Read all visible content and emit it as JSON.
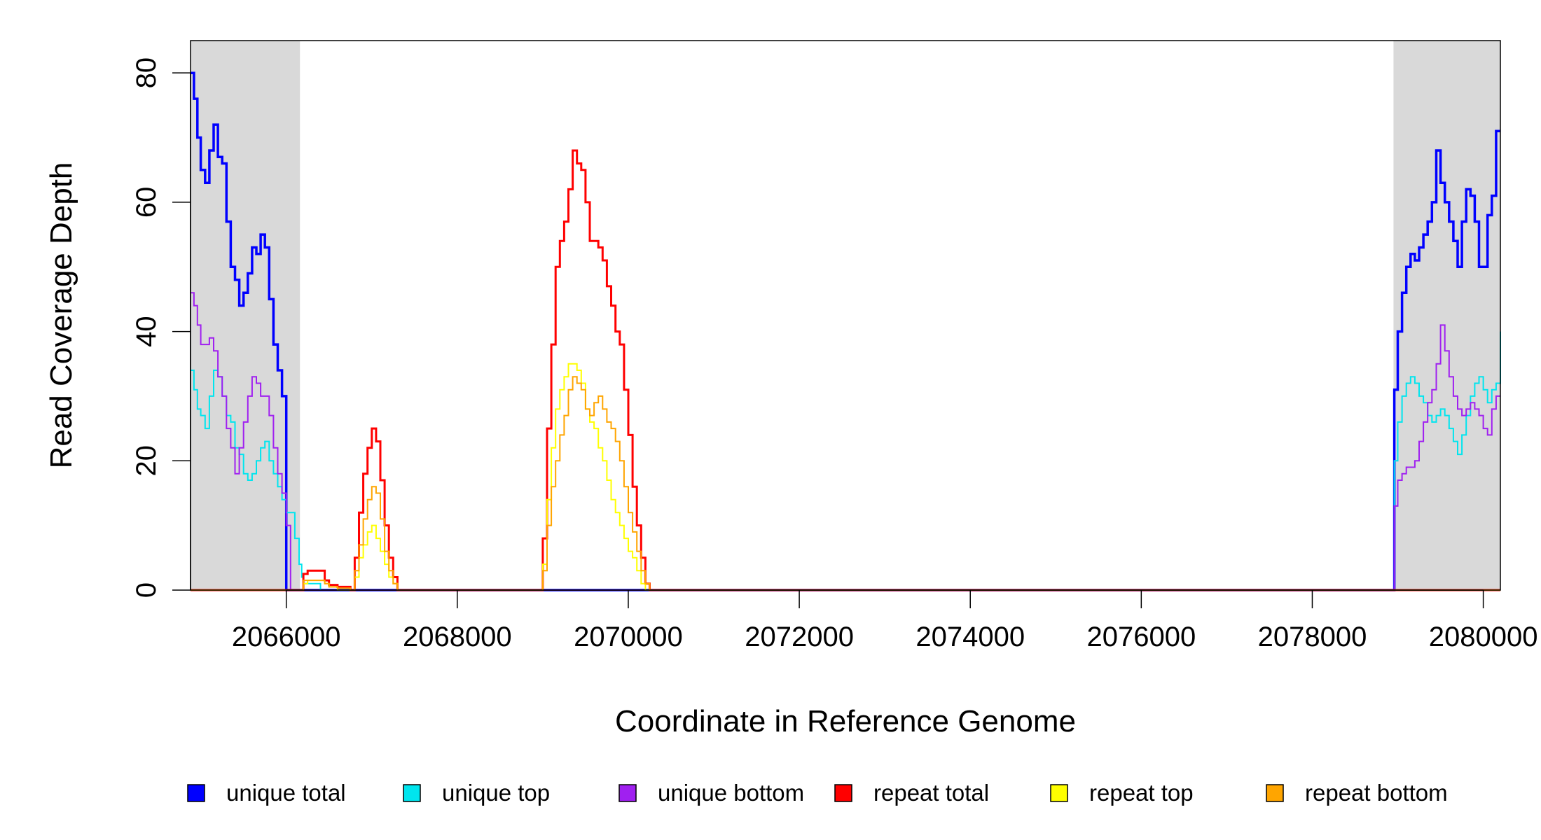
{
  "chart_data": {
    "type": "line",
    "title": "",
    "xlabel": "Coordinate in Reference Genome",
    "ylabel": "Read Coverage Depth",
    "xlim": [
      2064880,
      2080200
    ],
    "ylim": [
      0,
      85
    ],
    "x_ticks": [
      2066000,
      2068000,
      2070000,
      2072000,
      2074000,
      2076000,
      2078000,
      2080000
    ],
    "x_tick_labels": [
      "2066000",
      "2068000",
      "2070000",
      "2072000",
      "2074000",
      "2076000",
      "2078000",
      "2080000"
    ],
    "y_ticks": [
      0,
      20,
      40,
      60,
      80
    ],
    "y_tick_labels": [
      "0",
      "20",
      "40",
      "60",
      "80"
    ],
    "grid": false,
    "legend_position": "bottom",
    "shaded_regions": [
      {
        "x_start": 2064880,
        "x_end": 2066160,
        "color": "#d9d9d9"
      },
      {
        "x_start": 2078950,
        "x_end": 2080200,
        "color": "#d9d9d9"
      }
    ],
    "series": [
      {
        "name": "unique total",
        "color": "#0000ff",
        "x": [
          2064880,
          2064920,
          2064960,
          2065000,
          2065050,
          2065100,
          2065150,
          2065200,
          2065250,
          2065300,
          2065350,
          2065400,
          2065450,
          2065500,
          2065550,
          2065600,
          2065650,
          2065700,
          2065750,
          2065800,
          2065850,
          2065900,
          2065950,
          2066000,
          2066050,
          2066100,
          2066150,
          2066180,
          2066200,
          2066600,
          2078900,
          2078960,
          2079000,
          2079050,
          2079100,
          2079150,
          2079200,
          2079250,
          2079300,
          2079350,
          2079400,
          2079450,
          2079500,
          2079550,
          2079600,
          2079650,
          2079700,
          2079750,
          2079800,
          2079850,
          2079900,
          2079950,
          2080000,
          2080050,
          2080100,
          2080150,
          2080200
        ],
        "y": [
          80,
          76,
          70,
          65,
          63,
          68,
          72,
          67,
          66,
          57,
          50,
          48,
          44,
          46,
          49,
          53,
          52,
          55,
          53,
          45,
          38,
          34,
          30,
          0,
          0,
          0,
          0,
          0,
          0,
          0,
          0,
          31,
          40,
          46,
          50,
          52,
          51,
          53,
          55,
          57,
          60,
          68,
          63,
          60,
          57,
          54,
          50,
          57,
          62,
          61,
          57,
          50,
          50,
          58,
          61,
          71,
          71
        ]
      },
      {
        "name": "unique top",
        "color": "#00e5ee",
        "x": [
          2064880,
          2064920,
          2064960,
          2065000,
          2065050,
          2065100,
          2065150,
          2065200,
          2065250,
          2065300,
          2065350,
          2065400,
          2065450,
          2065500,
          2065550,
          2065600,
          2065650,
          2065700,
          2065750,
          2065800,
          2065850,
          2065900,
          2065950,
          2066000,
          2066100,
          2066150,
          2066180,
          2066200,
          2066400,
          2078900,
          2078960,
          2079000,
          2079050,
          2079100,
          2079150,
          2079200,
          2079250,
          2079300,
          2079350,
          2079400,
          2079450,
          2079500,
          2079550,
          2079600,
          2079650,
          2079700,
          2079750,
          2079800,
          2079850,
          2079900,
          2079950,
          2080000,
          2080050,
          2080100,
          2080150,
          2080200
        ],
        "y": [
          34,
          31,
          28,
          27,
          25,
          30,
          34,
          33,
          30,
          27,
          26,
          22,
          21,
          18,
          17,
          18,
          20,
          22,
          23,
          20,
          18,
          16,
          14,
          12,
          8,
          4,
          2,
          1,
          0,
          0,
          20,
          26,
          30,
          32,
          33,
          32,
          30,
          29,
          27,
          26,
          27,
          28,
          27,
          25,
          23,
          21,
          24,
          27,
          30,
          32,
          33,
          31,
          29,
          31,
          32,
          40
        ]
      },
      {
        "name": "unique bottom",
        "color": "#a020f0",
        "x": [
          2064880,
          2064920,
          2064960,
          2065000,
          2065050,
          2065100,
          2065150,
          2065200,
          2065250,
          2065300,
          2065350,
          2065400,
          2065450,
          2065500,
          2065550,
          2065600,
          2065650,
          2065700,
          2065750,
          2065800,
          2065850,
          2065900,
          2065950,
          2066000,
          2066050,
          2066100,
          2066150,
          2066200,
          2066600,
          2078900,
          2078960,
          2079000,
          2079050,
          2079100,
          2079150,
          2079200,
          2079250,
          2079300,
          2079350,
          2079400,
          2079450,
          2079500,
          2079550,
          2079600,
          2079650,
          2079700,
          2079750,
          2079800,
          2079850,
          2079900,
          2079950,
          2080000,
          2080050,
          2080100,
          2080150,
          2080200
        ],
        "y": [
          46,
          44,
          41,
          38,
          38,
          39,
          37,
          33,
          30,
          25,
          22,
          18,
          22,
          26,
          30,
          33,
          32,
          30,
          30,
          27,
          22,
          18,
          15,
          10,
          0,
          0,
          0,
          0,
          0,
          0,
          13,
          17,
          18,
          19,
          19,
          20,
          23,
          26,
          29,
          31,
          35,
          41,
          37,
          33,
          30,
          28,
          27,
          28,
          29,
          28,
          27,
          25,
          24,
          28,
          30,
          30
        ]
      },
      {
        "name": "repeat total",
        "color": "#ff0000",
        "x": [
          2064880,
          2066150,
          2066200,
          2066250,
          2066400,
          2066450,
          2066500,
          2066600,
          2066750,
          2066800,
          2066850,
          2066900,
          2066950,
          2067000,
          2067050,
          2067100,
          2067150,
          2067200,
          2067250,
          2067300,
          2067350,
          2068950,
          2069000,
          2069050,
          2069100,
          2069150,
          2069200,
          2069250,
          2069300,
          2069350,
          2069400,
          2069450,
          2069500,
          2069550,
          2069600,
          2069650,
          2069700,
          2069750,
          2069800,
          2069850,
          2069900,
          2069950,
          2070000,
          2070050,
          2070100,
          2070150,
          2070200,
          2070250,
          2070300,
          2080200
        ],
        "y": [
          0,
          0,
          2.5,
          3,
          3,
          1.5,
          0.8,
          0.5,
          0,
          5,
          12,
          18,
          22,
          25,
          23,
          17,
          10,
          5,
          2,
          0,
          0,
          0,
          8,
          25,
          38,
          50,
          54,
          57,
          62,
          68,
          66,
          65,
          60,
          54,
          54,
          53,
          51,
          47,
          44,
          40,
          38,
          31,
          24,
          16,
          10,
          5,
          1,
          0,
          0,
          0
        ]
      },
      {
        "name": "repeat top",
        "color": "#ffff00",
        "x": [
          2064880,
          2066150,
          2066200,
          2066250,
          2066450,
          2066500,
          2066600,
          2066750,
          2066800,
          2066850,
          2066900,
          2066950,
          2067000,
          2067050,
          2067100,
          2067150,
          2067200,
          2067250,
          2067300,
          2067350,
          2068950,
          2069000,
          2069050,
          2069100,
          2069150,
          2069200,
          2069250,
          2069300,
          2069350,
          2069400,
          2069450,
          2069500,
          2069550,
          2069600,
          2069650,
          2069700,
          2069750,
          2069800,
          2069850,
          2069900,
          2069950,
          2070000,
          2070050,
          2070100,
          2070150,
          2070200,
          2070250,
          2070300,
          2080200
        ],
        "y": [
          0,
          0,
          1,
          1.5,
          1,
          0.5,
          0,
          0,
          2,
          5,
          7,
          9,
          10,
          8,
          6,
          4,
          2,
          1,
          0,
          0,
          0,
          4,
          14,
          22,
          28,
          31,
          33,
          35,
          35,
          34,
          32,
          28,
          26,
          25,
          22,
          20,
          17,
          14,
          12,
          10,
          8,
          6,
          5,
          3,
          1,
          0,
          0,
          0,
          0
        ]
      },
      {
        "name": "repeat bottom",
        "color": "#ffa500",
        "x": [
          2064880,
          2066150,
          2066200,
          2066250,
          2066450,
          2066500,
          2066600,
          2066750,
          2066800,
          2066850,
          2066900,
          2066950,
          2067000,
          2067050,
          2067100,
          2067150,
          2067200,
          2067250,
          2067300,
          2067350,
          2068950,
          2069000,
          2069050,
          2069100,
          2069150,
          2069200,
          2069250,
          2069300,
          2069350,
          2069400,
          2069450,
          2069500,
          2069550,
          2069600,
          2069650,
          2069700,
          2069750,
          2069800,
          2069850,
          2069900,
          2069950,
          2070000,
          2070050,
          2070100,
          2070150,
          2070200,
          2070250,
          2070300,
          2080200
        ],
        "y": [
          0,
          0,
          1.5,
          1.5,
          1,
          0.5,
          0.3,
          0,
          3,
          7,
          11,
          14,
          16,
          15,
          11,
          6,
          3,
          1,
          0,
          0,
          0,
          3,
          10,
          16,
          20,
          24,
          27,
          31,
          33,
          32,
          31,
          28,
          27,
          29,
          30,
          28,
          26,
          25,
          23,
          20,
          16,
          12,
          9,
          6,
          3,
          1,
          0,
          0,
          0
        ]
      }
    ]
  }
}
